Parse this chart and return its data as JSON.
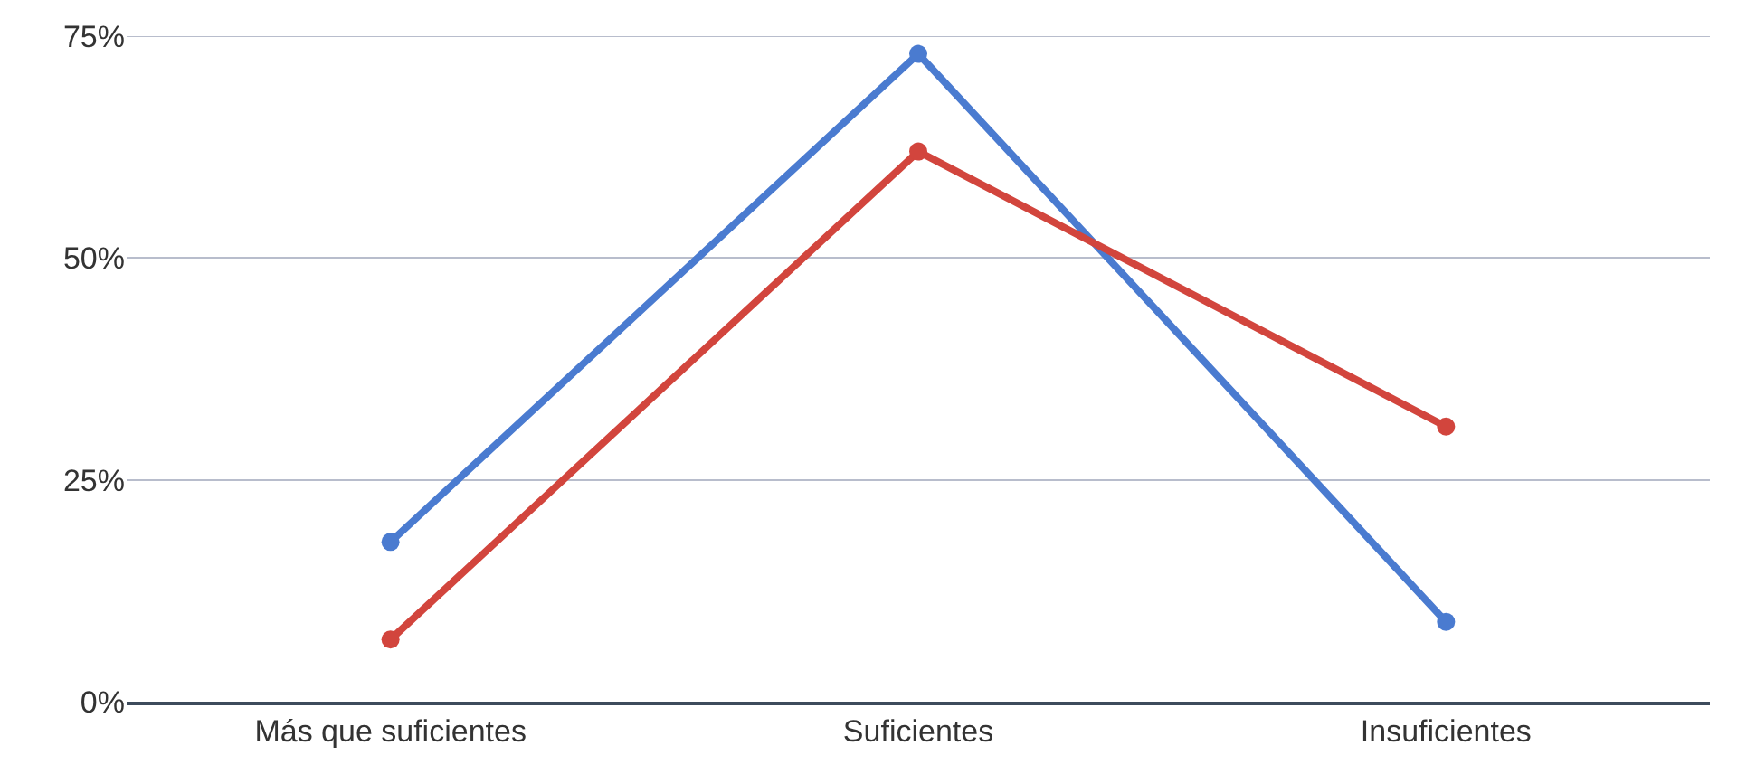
{
  "chart_data": {
    "type": "line",
    "categories": [
      "Más que suficientes",
      "Suficientes",
      "Insuficientes"
    ],
    "series": [
      {
        "color": "#4a7bd0",
        "values": [
          18,
          73,
          9
        ]
      },
      {
        "color": "#d2453d",
        "values": [
          7,
          62,
          31
        ]
      }
    ],
    "ylim": [
      0,
      75
    ],
    "yticks": [
      {
        "value": 0,
        "label": "0%"
      },
      {
        "value": 25,
        "label": "25%"
      },
      {
        "value": 50,
        "label": "50%"
      },
      {
        "value": 75,
        "label": "75%"
      }
    ],
    "grid": "y",
    "marker": "circle",
    "line_style": "solid"
  }
}
